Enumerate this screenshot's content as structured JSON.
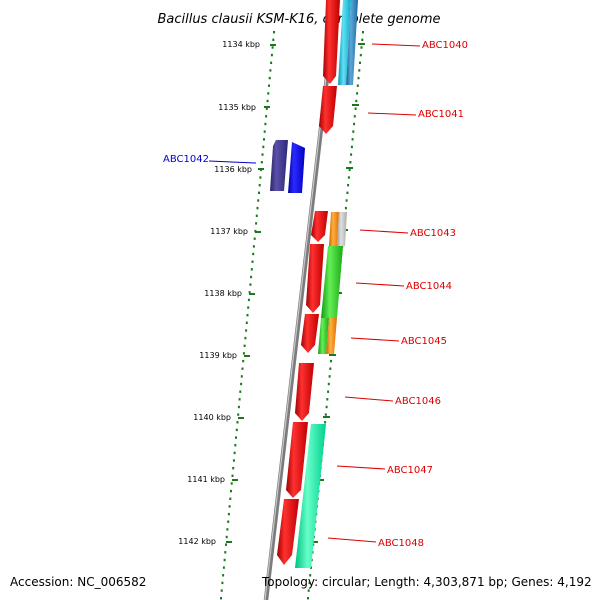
{
  "title": "Bacillus clausii KSM-K16, complete genome",
  "footer": {
    "accession": "Accession: NC_006582",
    "topology": "Topology: circular; Length: 4,303,871 bp; Genes: 4,192"
  },
  "scale": {
    "ticks": [
      "1134 kbp",
      "1135 kbp",
      "1136 kbp",
      "1137 kbp",
      "1138 kbp",
      "1139 kbp",
      "1140 kbp",
      "1141 kbp",
      "1142 kbp"
    ]
  },
  "genes": [
    {
      "name": "ABC1040",
      "color": "#dd0000"
    },
    {
      "name": "ABC1041",
      "color": "#dd0000"
    },
    {
      "name": "ABC1042",
      "color": "#0000cc"
    },
    {
      "name": "ABC1043",
      "color": "#dd0000"
    },
    {
      "name": "ABC1044",
      "color": "#dd0000"
    },
    {
      "name": "ABC1045",
      "color": "#dd0000"
    },
    {
      "name": "ABC1046",
      "color": "#dd0000"
    },
    {
      "name": "ABC1047",
      "color": "#dd0000"
    },
    {
      "name": "ABC1048",
      "color": "#dd0000"
    }
  ],
  "colors": {
    "backbone": "#8c8c8c",
    "tick": "#1a7a1a",
    "red_feature": "#ee0000",
    "blue_feature": "#0000ee",
    "navy_feature": "#3a3088",
    "cyan_feature": "#17b8d8",
    "steel_feature": "#2a7fb0",
    "orange_feature": "#ff8800",
    "gray_feature": "#bbbbbb",
    "green_feature": "#22cc22",
    "mint_feature": "#11f0a0"
  }
}
